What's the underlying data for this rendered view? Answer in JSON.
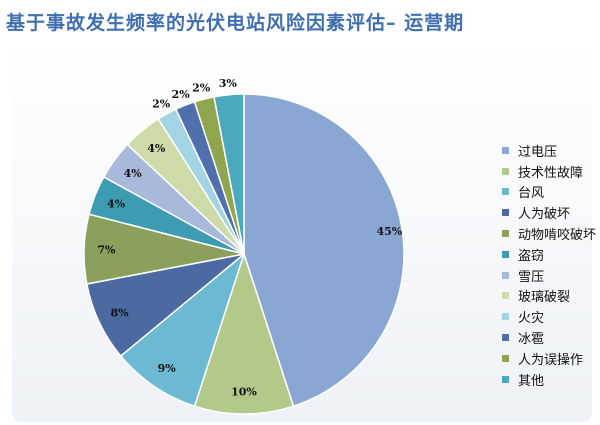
{
  "title": "基于事故发生频率的光伏电站风险因素评估– 运营期",
  "chart_data": {
    "type": "pie",
    "title": "基于事故发生频率的光伏电站风险因素评估– 运营期",
    "legend_position": "right",
    "slices": [
      {
        "label": "过电压",
        "value": 45,
        "display": "45%",
        "color": "#8aa7d4"
      },
      {
        "label": "技术性故障",
        "value": 10,
        "display": "10%",
        "color": "#b3c98a"
      },
      {
        "label": "台风",
        "value": 9,
        "display": "9%",
        "color": "#6cb9d3"
      },
      {
        "label": "人为破坏",
        "value": 8,
        "display": "8%",
        "color": "#4a6aa1"
      },
      {
        "label": "动物啃咬破坏",
        "value": 7,
        "display": "7%",
        "color": "#8ba05c"
      },
      {
        "label": "盗窃",
        "value": 4,
        "display": "4%",
        "color": "#3d9cb1"
      },
      {
        "label": "雪压",
        "value": 4,
        "display": "4%",
        "color": "#a8b9dc"
      },
      {
        "label": "玻璃破裂",
        "value": 4,
        "display": "4%",
        "color": "#ccdba8"
      },
      {
        "label": "火灾",
        "value": 2,
        "display": "2%",
        "color": "#a2d4e4"
      },
      {
        "label": "冰雹",
        "value": 2,
        "display": "2%",
        "color": "#4f70ac"
      },
      {
        "label": "人为误操作",
        "value": 2,
        "display": "2%",
        "color": "#8fa54e"
      },
      {
        "label": "其他",
        "value": 3,
        "display": "3%",
        "color": "#4aa9bd"
      }
    ]
  }
}
